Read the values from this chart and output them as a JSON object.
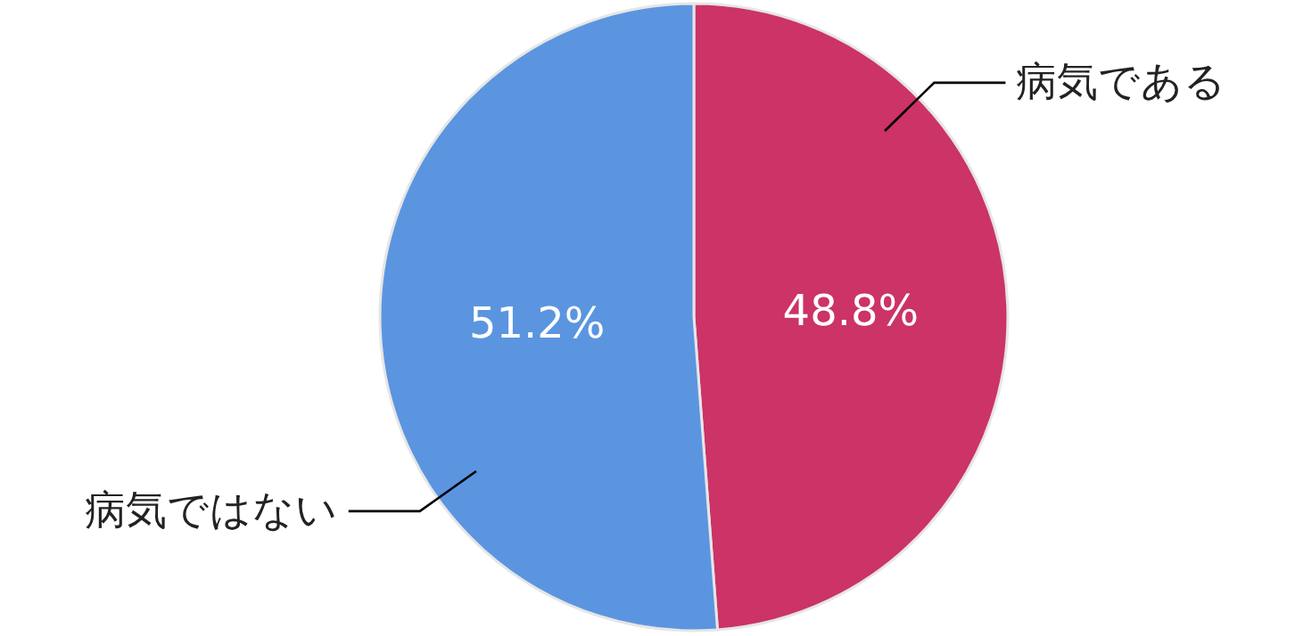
{
  "chart_data": {
    "type": "pie",
    "categories": [
      "病気である",
      "病気ではない"
    ],
    "values": [
      48.8,
      51.2
    ],
    "colors": [
      "#cc3366",
      "#5b95e0"
    ],
    "value_labels": [
      "48.8%",
      "51.2%"
    ],
    "legend": false
  }
}
